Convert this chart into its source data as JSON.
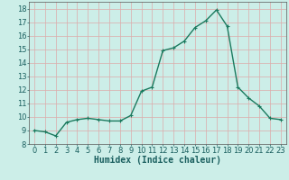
{
  "x": [
    0,
    1,
    2,
    3,
    4,
    5,
    6,
    7,
    8,
    9,
    10,
    11,
    12,
    13,
    14,
    15,
    16,
    17,
    18,
    19,
    20,
    21,
    22,
    23
  ],
  "y": [
    9.0,
    8.9,
    8.6,
    9.6,
    9.8,
    9.9,
    9.8,
    9.7,
    9.7,
    10.1,
    11.9,
    12.2,
    14.9,
    15.1,
    15.6,
    16.6,
    17.1,
    17.9,
    16.7,
    12.2,
    11.4,
    10.8,
    9.9,
    9.8
  ],
  "line_color": "#1a7a5e",
  "marker": "+",
  "marker_size": 3,
  "bg_color": "#cceee8",
  "grid_color": "#aaddcc",
  "xlabel": "Humidex (Indice chaleur)",
  "xlabel_color": "#1a5f5f",
  "xlabel_fontsize": 7,
  "tick_color": "#1a5f5f",
  "tick_fontsize": 6,
  "ylim": [
    8,
    18.5
  ],
  "yticks": [
    8,
    9,
    10,
    11,
    12,
    13,
    14,
    15,
    16,
    17,
    18
  ],
  "xticks": [
    0,
    1,
    2,
    3,
    4,
    5,
    6,
    7,
    8,
    9,
    10,
    11,
    12,
    13,
    14,
    15,
    16,
    17,
    18,
    19,
    20,
    21,
    22,
    23
  ],
  "line_width": 1.0
}
